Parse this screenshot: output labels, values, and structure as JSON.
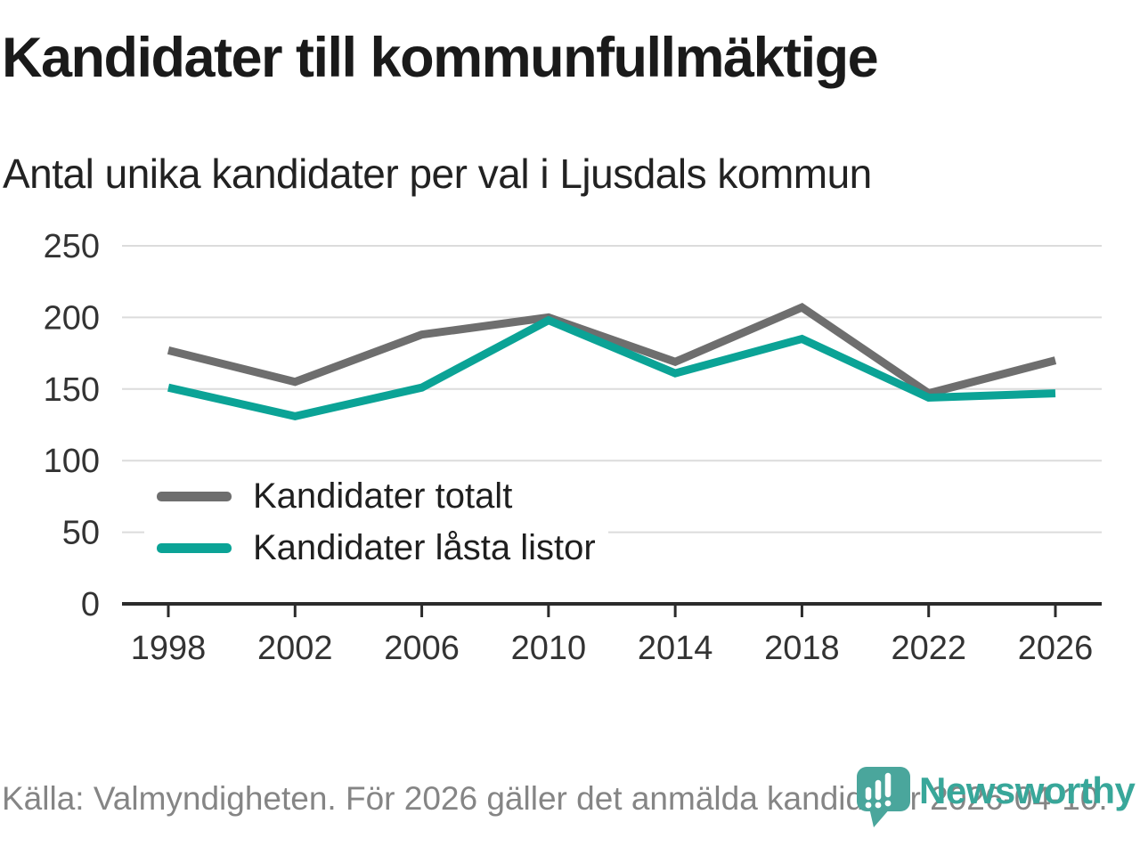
{
  "header": {
    "title": "Kandidater till kommunfullmäktige",
    "subtitle": "Antal unika kandidater per val i Ljusdals kommun"
  },
  "chart_data": {
    "type": "line",
    "categories": [
      "1998",
      "2002",
      "2006",
      "2010",
      "2014",
      "2018",
      "2022",
      "2026"
    ],
    "series": [
      {
        "name": "Kandidater totalt",
        "color": "#6e6e6e",
        "values": [
          177,
          155,
          188,
          200,
          169,
          207,
          147,
          170
        ]
      },
      {
        "name": "Kandidater låsta listor",
        "color": "#0ba396",
        "values": [
          151,
          131,
          151,
          198,
          161,
          185,
          144,
          147
        ]
      }
    ],
    "ylim": [
      0,
      250
    ],
    "yticks": [
      0,
      50,
      100,
      150,
      200,
      250
    ],
    "grid": "horizontal",
    "legend_position": "inside-left",
    "axis_color": "#2b2b2b",
    "gridline_color": "#dcdcdc",
    "tick_label_color": "#333333"
  },
  "footer": {
    "source": "Källa: Valmyndigheten. För 2026 gäller det anmälda kandidater 2026-04-10."
  },
  "branding": {
    "logo_text": "Newsworthy",
    "logo_text_color": "#38a79a",
    "logo_icon_color": "#4aa69c"
  }
}
